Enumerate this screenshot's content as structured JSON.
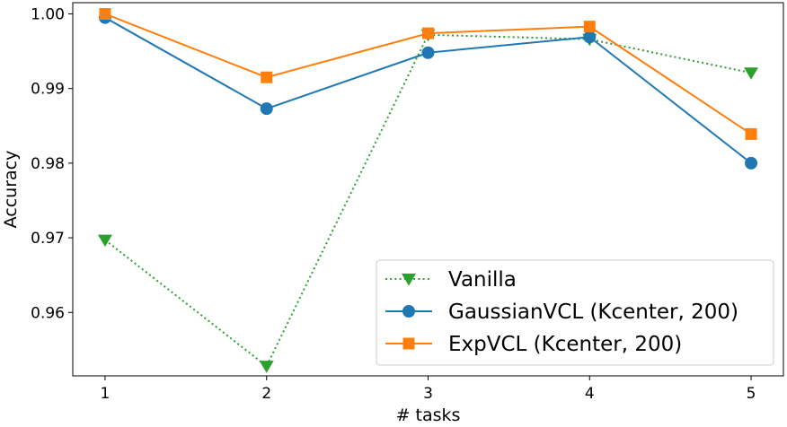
{
  "chart_data": {
    "type": "line",
    "title": "",
    "xlabel": "# tasks",
    "ylabel": "Accuracy",
    "x": [
      1,
      2,
      3,
      4,
      5
    ],
    "xticks": [
      "1",
      "2",
      "3",
      "4",
      "5"
    ],
    "yticks": [
      "0.96",
      "0.97",
      "0.98",
      "0.99",
      "1.00"
    ],
    "ylim": [
      0.9515,
      1.0015
    ],
    "xlim": [
      0.8,
      5.2
    ],
    "grid": false,
    "legend_position": "lower-right",
    "series": [
      {
        "name": "Vanilla",
        "values": [
          0.9697,
          0.9528,
          0.9972,
          0.9966,
          0.9921
        ],
        "color": "#2ca02c",
        "line_style": "dotted",
        "marker": "triangle-down"
      },
      {
        "name": "GaussianVCL (Kcenter, 200)",
        "values": [
          0.9995,
          0.9873,
          0.9948,
          0.9969,
          0.98
        ],
        "color": "#1f77b4",
        "line_style": "solid",
        "marker": "circle"
      },
      {
        "name": "ExpVCL (Kcenter, 200)",
        "values": [
          1.0,
          0.9915,
          0.9974,
          0.9983,
          0.9839
        ],
        "color": "#ff7f0e",
        "line_style": "solid",
        "marker": "square"
      }
    ]
  }
}
